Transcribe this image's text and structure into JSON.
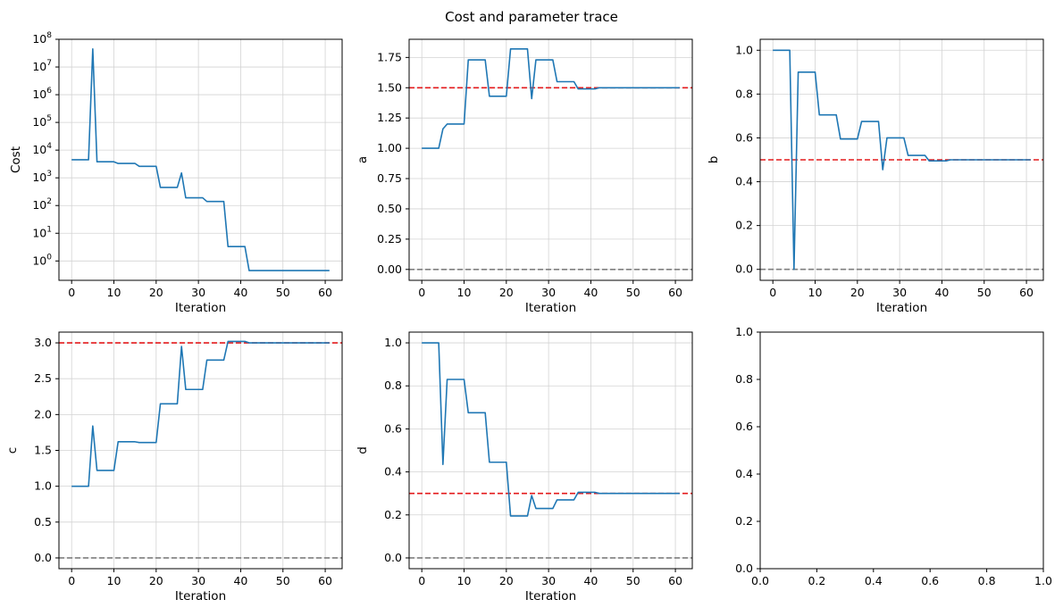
{
  "figure": {
    "title": "Cost and parameter trace"
  },
  "colors": {
    "trace": "#1f77b4",
    "true_value": "#e31a1c",
    "zero_line": "#7f7f7f",
    "grid": "#d3d3d3"
  },
  "chart_data": [
    {
      "id": "cost",
      "type": "line",
      "title": "",
      "xlabel": "Iteration",
      "ylabel": "Cost",
      "yscale": "log",
      "xlim": [
        -3,
        64
      ],
      "ylim": [
        0.2,
        100000000
      ],
      "xticks": [
        0,
        10,
        20,
        30,
        40,
        50,
        60
      ],
      "yticks": [
        1,
        10,
        100,
        1000,
        10000,
        100000,
        1000000,
        10000000,
        100000000
      ],
      "ytick_labels": [
        {
          "base": "10",
          "exp": "0"
        },
        {
          "base": "10",
          "exp": "1"
        },
        {
          "base": "10",
          "exp": "2"
        },
        {
          "base": "10",
          "exp": "3"
        },
        {
          "base": "10",
          "exp": "4"
        },
        {
          "base": "10",
          "exp": "5"
        },
        {
          "base": "10",
          "exp": "6"
        },
        {
          "base": "10",
          "exp": "7"
        },
        {
          "base": "10",
          "exp": "8"
        }
      ],
      "grid": true,
      "ref_lines": [],
      "series": [
        {
          "x": [
            0,
            4,
            5,
            6,
            10,
            11,
            15,
            16,
            20,
            21,
            25,
            26,
            27,
            31,
            32,
            36,
            37,
            41,
            42,
            61
          ],
          "y": [
            4500,
            4500,
            45000000,
            3800,
            3800,
            3300,
            3300,
            2600,
            2600,
            450,
            450,
            1500,
            190,
            190,
            140,
            140,
            3.3,
            3.3,
            0.45,
            0.45
          ]
        }
      ]
    },
    {
      "id": "a",
      "type": "line",
      "title": "",
      "xlabel": "Iteration",
      "ylabel": "a",
      "yscale": "linear",
      "xlim": [
        -3,
        64
      ],
      "ylim": [
        -0.09,
        1.9
      ],
      "xticks": [
        0,
        10,
        20,
        30,
        40,
        50,
        60
      ],
      "yticks": [
        0,
        0.25,
        0.5,
        0.75,
        1.0,
        1.25,
        1.5,
        1.75
      ],
      "ytick_labels": [
        "0.00",
        "0.25",
        "0.50",
        "0.75",
        "1.00",
        "1.25",
        "1.50",
        "1.75"
      ],
      "grid": true,
      "ref_lines": [
        {
          "y": 1.5,
          "kind": "true_value"
        },
        {
          "y": 0,
          "kind": "zero_line"
        }
      ],
      "series": [
        {
          "x": [
            0,
            4,
            5,
            6,
            10,
            11,
            15,
            16,
            20,
            21,
            25,
            26,
            27,
            31,
            32,
            36,
            37,
            41,
            42,
            61
          ],
          "y": [
            1.0,
            1.0,
            1.16,
            1.2,
            1.2,
            1.73,
            1.73,
            1.43,
            1.43,
            1.82,
            1.82,
            1.41,
            1.73,
            1.73,
            1.55,
            1.55,
            1.49,
            1.49,
            1.5,
            1.5
          ]
        }
      ]
    },
    {
      "id": "b",
      "type": "line",
      "title": "",
      "xlabel": "Iteration",
      "ylabel": "b",
      "yscale": "linear",
      "xlim": [
        -3,
        64
      ],
      "ylim": [
        -0.05,
        1.05
      ],
      "xticks": [
        0,
        10,
        20,
        30,
        40,
        50,
        60
      ],
      "yticks": [
        0,
        0.2,
        0.4,
        0.6,
        0.8,
        1.0
      ],
      "ytick_labels": [
        "0.0",
        "0.2",
        "0.4",
        "0.6",
        "0.8",
        "1.0"
      ],
      "grid": true,
      "ref_lines": [
        {
          "y": 0.5,
          "kind": "true_value"
        },
        {
          "y": 0,
          "kind": "zero_line"
        }
      ],
      "series": [
        {
          "x": [
            0,
            4,
            5,
            6,
            10,
            11,
            15,
            16,
            20,
            21,
            25,
            26,
            27,
            31,
            32,
            36,
            37,
            41,
            42,
            61
          ],
          "y": [
            1.0,
            1.0,
            0.0,
            0.9,
            0.9,
            0.705,
            0.705,
            0.595,
            0.595,
            0.675,
            0.675,
            0.455,
            0.6,
            0.6,
            0.52,
            0.52,
            0.495,
            0.495,
            0.5,
            0.5
          ]
        }
      ]
    },
    {
      "id": "c",
      "type": "line",
      "title": "",
      "xlabel": "Iteration",
      "ylabel": "c",
      "yscale": "linear",
      "xlim": [
        -3,
        64
      ],
      "ylim": [
        -0.15,
        3.15
      ],
      "xticks": [
        0,
        10,
        20,
        30,
        40,
        50,
        60
      ],
      "yticks": [
        0,
        0.5,
        1.0,
        1.5,
        2.0,
        2.5,
        3.0
      ],
      "ytick_labels": [
        "0.0",
        "0.5",
        "1.0",
        "1.5",
        "2.0",
        "2.5",
        "3.0"
      ],
      "grid": true,
      "ref_lines": [
        {
          "y": 3.0,
          "kind": "true_value"
        },
        {
          "y": 0,
          "kind": "zero_line"
        }
      ],
      "series": [
        {
          "x": [
            0,
            4,
            5,
            6,
            10,
            11,
            15,
            16,
            20,
            21,
            25,
            26,
            27,
            31,
            32,
            36,
            37,
            41,
            42,
            61
          ],
          "y": [
            1.0,
            1.0,
            1.84,
            1.22,
            1.22,
            1.62,
            1.62,
            1.61,
            1.61,
            2.15,
            2.15,
            2.95,
            2.35,
            2.35,
            2.76,
            2.76,
            3.02,
            3.02,
            3.0,
            3.0
          ]
        }
      ]
    },
    {
      "id": "d",
      "type": "line",
      "title": "",
      "xlabel": "Iteration",
      "ylabel": "d",
      "yscale": "linear",
      "xlim": [
        -3,
        64
      ],
      "ylim": [
        -0.05,
        1.05
      ],
      "xticks": [
        0,
        10,
        20,
        30,
        40,
        50,
        60
      ],
      "yticks": [
        0,
        0.2,
        0.4,
        0.6,
        0.8,
        1.0
      ],
      "ytick_labels": [
        "0.0",
        "0.2",
        "0.4",
        "0.6",
        "0.8",
        "1.0"
      ],
      "grid": true,
      "ref_lines": [
        {
          "y": 0.3,
          "kind": "true_value"
        },
        {
          "y": 0,
          "kind": "zero_line"
        }
      ],
      "series": [
        {
          "x": [
            0,
            4,
            5,
            6,
            10,
            11,
            15,
            16,
            20,
            21,
            25,
            26,
            27,
            31,
            32,
            36,
            37,
            41,
            42,
            61
          ],
          "y": [
            1.0,
            1.0,
            0.435,
            0.83,
            0.83,
            0.675,
            0.675,
            0.445,
            0.445,
            0.195,
            0.195,
            0.29,
            0.23,
            0.23,
            0.27,
            0.27,
            0.305,
            0.305,
            0.3,
            0.3
          ]
        }
      ]
    },
    {
      "id": "empty",
      "type": "line",
      "title": "",
      "xlabel": "",
      "ylabel": "",
      "yscale": "linear",
      "xlim": [
        0,
        1
      ],
      "ylim": [
        0,
        1
      ],
      "xticks": [
        0,
        0.2,
        0.4,
        0.6,
        0.8,
        1.0
      ],
      "xtick_labels": [
        "0.0",
        "0.2",
        "0.4",
        "0.6",
        "0.8",
        "1.0"
      ],
      "yticks": [
        0,
        0.2,
        0.4,
        0.6,
        0.8,
        1.0
      ],
      "ytick_labels": [
        "0.0",
        "0.2",
        "0.4",
        "0.6",
        "0.8",
        "1.0"
      ],
      "grid": false,
      "ref_lines": [],
      "series": []
    }
  ]
}
